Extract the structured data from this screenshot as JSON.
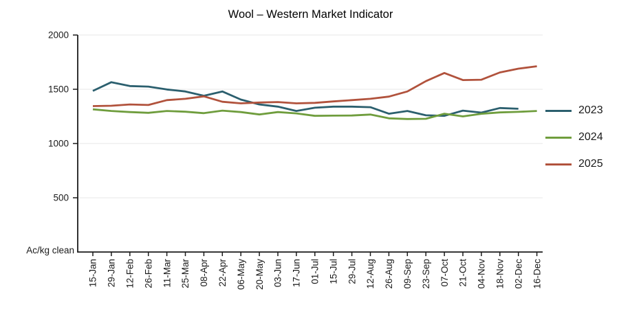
{
  "chart_data": {
    "type": "line",
    "title": "Wool – Western Market Indicator",
    "y_axis_unit_label": "Ac/kg clean",
    "ylim": [
      0,
      2000
    ],
    "yticks": [
      500,
      1000,
      1500,
      2000
    ],
    "grid": "horizontal-light",
    "legend_position": "right",
    "x_tick_label_rotation_deg": 90,
    "categories": [
      "15-Jan",
      "29-Jan",
      "12-Feb",
      "26-Feb",
      "11-Mar",
      "25-Mar",
      "08-Apr",
      "22-Apr",
      "06-May",
      "20-May",
      "03-Jun",
      "17-Jun",
      "01-Jul",
      "15-Jul",
      "29-Jul",
      "12-Aug",
      "26-Aug",
      "09-Sep",
      "23-Sep",
      "07-Oct",
      "21-Oct",
      "04-Nov",
      "18-Nov",
      "02-Dec",
      "16-Dec"
    ],
    "series": [
      {
        "name": "2023",
        "color": "#2b5f6e",
        "values": [
          1485,
          1565,
          1530,
          1525,
          1498,
          1480,
          1440,
          1480,
          1405,
          1360,
          1340,
          1300,
          1330,
          1340,
          1340,
          1335,
          1275,
          1300,
          1260,
          1255,
          1303,
          1285,
          1327,
          1320,
          null
        ]
      },
      {
        "name": "2024",
        "color": "#6f9d3d",
        "values": [
          1315,
          1300,
          1290,
          1283,
          1300,
          1293,
          1280,
          1303,
          1290,
          1268,
          1290,
          1278,
          1255,
          1257,
          1258,
          1267,
          1232,
          1226,
          1228,
          1275,
          1250,
          1274,
          1287,
          1292,
          1300
        ]
      },
      {
        "name": "2025",
        "color": "#b1523c",
        "values": [
          1345,
          1348,
          1360,
          1355,
          1400,
          1412,
          1435,
          1385,
          1370,
          1378,
          1382,
          1370,
          1375,
          1388,
          1400,
          1412,
          1432,
          1480,
          1575,
          1650,
          1585,
          1588,
          1655,
          1690,
          1712
        ]
      }
    ]
  }
}
